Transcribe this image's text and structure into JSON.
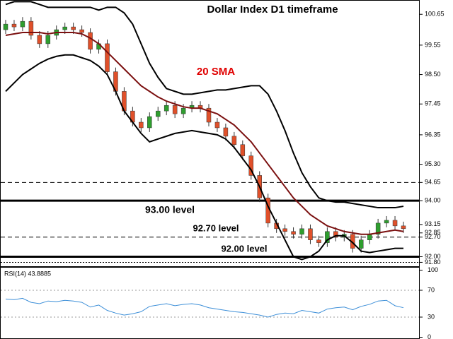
{
  "chart_data": [
    {
      "type": "candlestick",
      "title": "Dollar Index D1 timeframe",
      "open": [
        100.1,
        100.3,
        100.2,
        100.4,
        99.9,
        99.6,
        99.9,
        100.1,
        100.2,
        100.1,
        100.0,
        99.4,
        99.6,
        98.6,
        97.9,
        97.2,
        96.8,
        96.6,
        97.0,
        97.2,
        97.4,
        97.1,
        97.3,
        97.4,
        97.3,
        96.8,
        96.6,
        96.3,
        96.0,
        95.6,
        94.9,
        94.1,
        93.2,
        93.0,
        92.9,
        92.8,
        93.0,
        92.6,
        92.5,
        92.9,
        92.7,
        92.8,
        92.3,
        92.6,
        92.8,
        93.2,
        93.3,
        93.1
      ],
      "high": [
        100.45,
        100.45,
        100.55,
        100.55,
        100.05,
        100.05,
        100.25,
        100.35,
        100.35,
        100.25,
        100.15,
        99.75,
        99.75,
        98.75,
        98.05,
        97.35,
        96.95,
        97.15,
        97.35,
        97.55,
        97.55,
        97.45,
        97.55,
        97.55,
        97.45,
        96.95,
        96.75,
        96.45,
        96.15,
        95.75,
        95.05,
        94.25,
        93.35,
        93.15,
        93.05,
        93.15,
        93.15,
        92.75,
        93.05,
        93.05,
        92.95,
        92.95,
        92.75,
        92.95,
        93.35,
        93.45,
        93.45,
        93.25
      ],
      "low": [
        99.95,
        100.05,
        100.05,
        99.75,
        99.45,
        99.45,
        99.75,
        99.95,
        99.95,
        99.85,
        99.25,
        99.25,
        98.45,
        97.75,
        97.05,
        96.65,
        96.45,
        96.45,
        96.85,
        97.05,
        96.95,
        96.95,
        97.15,
        97.15,
        96.65,
        96.45,
        96.15,
        95.85,
        95.45,
        94.75,
        93.95,
        93.05,
        92.85,
        92.75,
        92.65,
        92.65,
        92.45,
        92.35,
        92.35,
        92.55,
        92.55,
        92.15,
        92.15,
        92.45,
        92.65,
        93.05,
        92.95,
        92.85
      ],
      "close": [
        100.3,
        100.2,
        100.4,
        99.9,
        99.6,
        99.9,
        100.1,
        100.2,
        100.1,
        100.0,
        99.4,
        99.6,
        98.6,
        97.9,
        97.2,
        96.8,
        96.6,
        97.0,
        97.2,
        97.4,
        97.1,
        97.3,
        97.4,
        97.3,
        96.8,
        96.6,
        96.3,
        96.0,
        95.6,
        94.9,
        94.1,
        93.2,
        93.0,
        92.9,
        92.8,
        93.0,
        92.6,
        92.5,
        92.9,
        92.7,
        92.8,
        92.3,
        92.6,
        92.8,
        93.2,
        93.3,
        93.1,
        93.0
      ],
      "up_color": "#2e9e2e",
      "down_color": "#e0502a",
      "overlays": [
        {
          "color": "#000000",
          "values": [
            101.0,
            101.1,
            101.1,
            101.1,
            101.0,
            100.9,
            100.9,
            100.9,
            100.9,
            100.9,
            100.9,
            100.8,
            100.9,
            100.9,
            100.7,
            100.3,
            99.6,
            98.9,
            98.4,
            98.0,
            97.9,
            97.8,
            97.8,
            97.85,
            97.9,
            97.95,
            97.95,
            98.0,
            98.05,
            98.1,
            98.1,
            97.8,
            97.2,
            96.5,
            95.7,
            95.0,
            94.5,
            94.1,
            94.0,
            93.95,
            93.95,
            93.9,
            93.85,
            93.8,
            93.75,
            93.75,
            93.75,
            93.8
          ]
        },
        {
          "color": "#7b1010",
          "values": [
            99.9,
            99.95,
            100.0,
            100.0,
            100.0,
            99.95,
            100.0,
            100.0,
            100.0,
            99.95,
            99.8,
            99.6,
            99.3,
            99.0,
            98.7,
            98.4,
            98.1,
            97.9,
            97.7,
            97.55,
            97.45,
            97.35,
            97.3,
            97.3,
            97.2,
            97.1,
            96.9,
            96.7,
            96.4,
            96.1,
            95.7,
            95.3,
            94.9,
            94.5,
            94.1,
            93.8,
            93.5,
            93.3,
            93.1,
            93.0,
            92.9,
            92.85,
            92.8,
            92.8,
            92.85,
            92.9,
            92.95,
            92.9
          ]
        },
        {
          "color": "#000000",
          "values": [
            97.9,
            98.2,
            98.5,
            98.7,
            98.9,
            99.05,
            99.15,
            99.2,
            99.2,
            99.1,
            99.0,
            98.8,
            98.5,
            97.9,
            97.2,
            96.8,
            96.4,
            96.1,
            96.2,
            96.3,
            96.4,
            96.45,
            96.5,
            96.45,
            96.4,
            96.35,
            96.2,
            95.9,
            95.5,
            95.1,
            94.5,
            93.8,
            93.2,
            92.6,
            92.0,
            91.9,
            92.0,
            92.2,
            92.6,
            92.75,
            92.75,
            92.5,
            92.2,
            92.15,
            92.2,
            92.25,
            92.3,
            92.3
          ]
        }
      ],
      "levels": [
        {
          "value": 94.65,
          "style": "dashed"
        },
        {
          "value": 94.0,
          "style": "solid"
        },
        {
          "value": 92.7,
          "style": "dashed"
        },
        {
          "value": 92.0,
          "style": "solid"
        },
        {
          "value": 91.8,
          "style": "dotted"
        }
      ],
      "annotations": [
        {
          "text": "20 SMA",
          "color": "#e00000"
        },
        {
          "text": "93.00 level",
          "color": "#000000"
        },
        {
          "text": "92.70 level",
          "color": "#000000"
        },
        {
          "text": "92.00 level",
          "color": "#000000"
        }
      ],
      "ylim": [
        91.66,
        101.16
      ],
      "yticks": [
        100.65,
        99.55,
        {
          "value": 98.5,
          "label": "98.50"
        },
        97.45,
        96.35,
        {
          "value": 95.3,
          "label": "95.30"
        },
        94.65,
        {
          "value": 94.0,
          "label": "94.00"
        },
        93.15,
        92.85,
        {
          "value": 92.7,
          "label": "92.70"
        },
        {
          "value": 92.0,
          "label": "92.00"
        },
        {
          "value": 91.8,
          "label": "91.80"
        }
      ]
    },
    {
      "type": "line",
      "title": "RSI(14) 43.8885",
      "color": "#3d8fd8",
      "values": [
        57,
        56,
        58,
        52,
        50,
        54,
        53,
        55,
        54,
        52,
        45,
        48,
        40,
        36,
        33,
        35,
        38,
        46,
        48,
        50,
        47,
        49,
        50,
        48,
        44,
        42,
        40,
        38,
        37,
        35,
        33,
        30,
        34,
        36,
        35,
        40,
        38,
        36,
        42,
        44,
        45,
        41,
        46,
        49,
        54,
        55,
        47,
        44
      ],
      "ylim": [
        0,
        100
      ],
      "yticks": [
        100,
        70,
        30,
        0
      ]
    }
  ]
}
